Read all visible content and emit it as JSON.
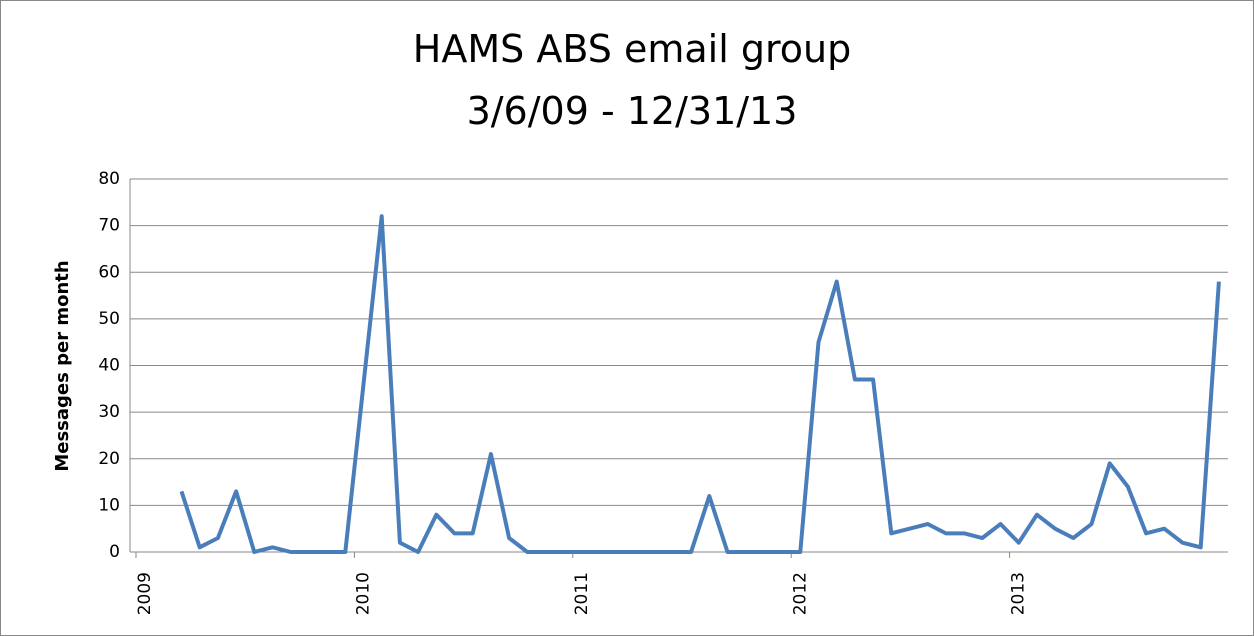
{
  "chart_data": {
    "type": "line",
    "title": "HAMS ABS email group",
    "subtitle": "3/6/09 - 12/31/13",
    "y_label": "Messages per month",
    "categories": [
      "2009",
      null,
      null,
      null,
      null,
      null,
      null,
      null,
      null,
      null,
      null,
      null,
      "2010",
      null,
      null,
      null,
      null,
      null,
      null,
      null,
      null,
      null,
      null,
      null,
      "2011",
      null,
      null,
      null,
      null,
      null,
      null,
      null,
      null,
      null,
      null,
      null,
      "2012",
      null,
      null,
      null,
      null,
      null,
      null,
      null,
      null,
      null,
      null,
      null,
      "2013",
      null,
      null,
      null,
      null,
      null,
      null,
      null,
      null,
      null,
      null,
      null
    ],
    "series": [
      {
        "name": "Messages",
        "color": "#4a7ebb",
        "values": [
          null,
          null,
          13,
          1,
          3,
          13,
          0,
          1,
          0,
          0,
          0,
          0,
          36,
          72,
          2,
          0,
          8,
          4,
          4,
          21,
          3,
          0,
          0,
          0,
          0,
          0,
          0,
          0,
          0,
          0,
          0,
          12,
          0,
          0,
          0,
          0,
          0,
          45,
          58,
          37,
          37,
          4,
          5,
          6,
          4,
          4,
          3,
          6,
          2,
          8,
          5,
          3,
          6,
          19,
          14,
          4,
          5,
          2,
          1,
          58
        ]
      }
    ],
    "ylim": [
      0,
      80
    ],
    "yticks": [
      0,
      10,
      20,
      30,
      40,
      50,
      60,
      70,
      80
    ],
    "grid": true
  }
}
